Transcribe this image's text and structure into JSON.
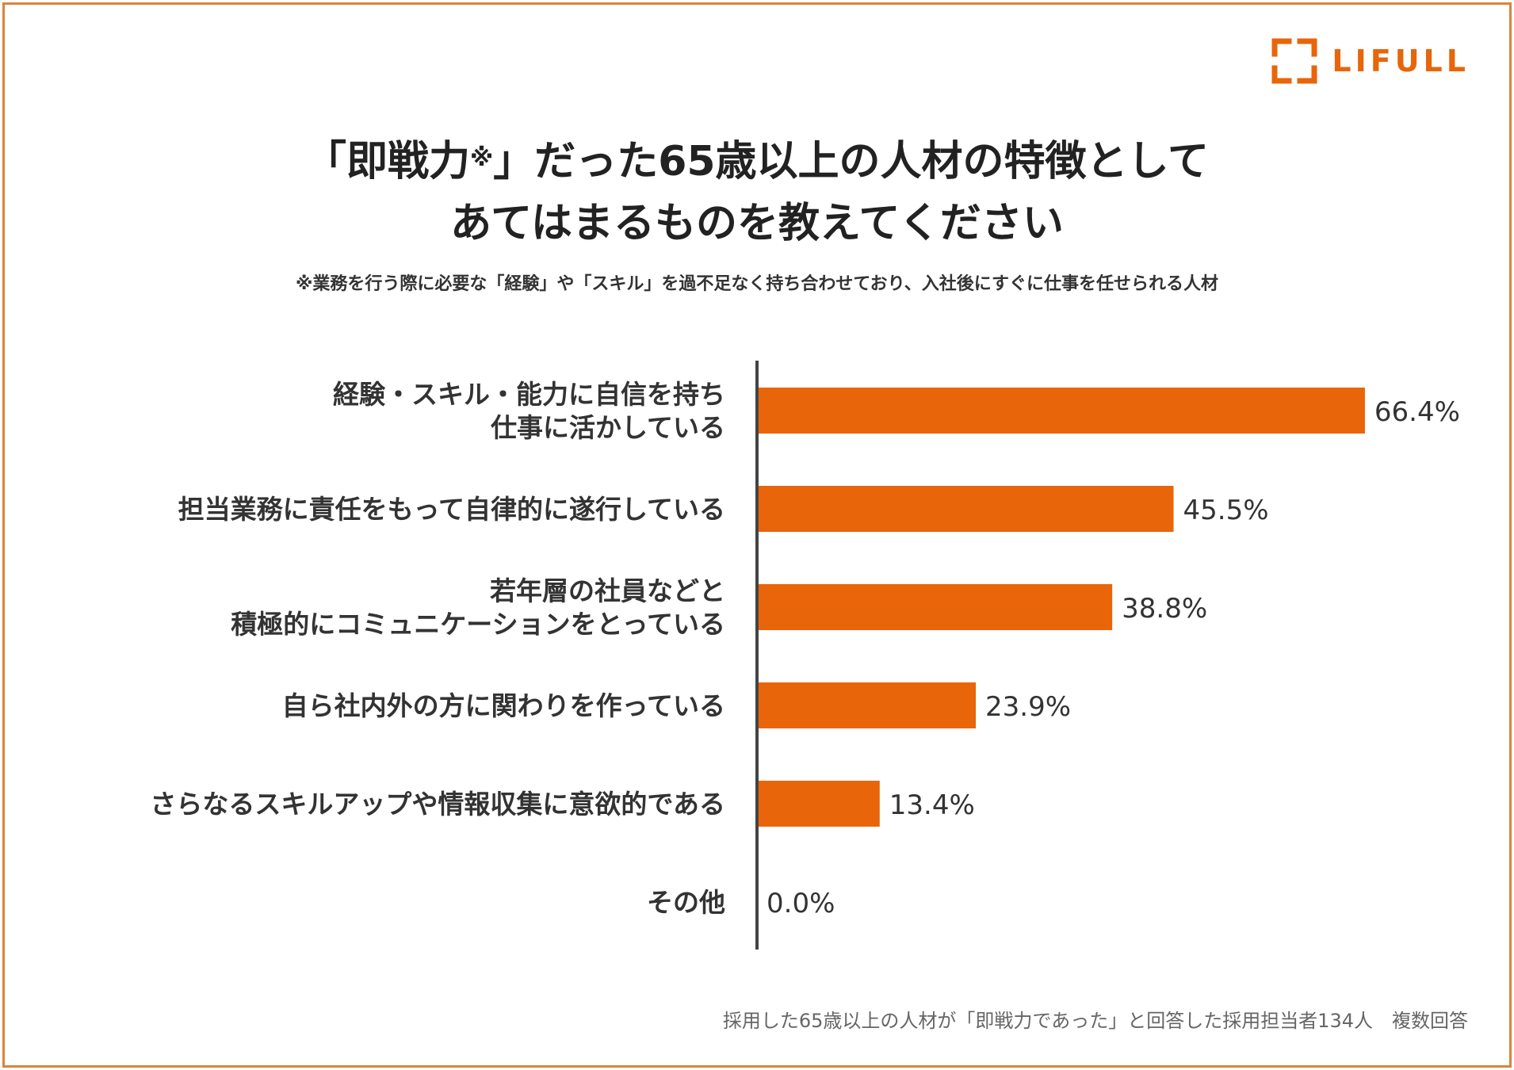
{
  "brand": {
    "logo_text": "LIFULL",
    "logo_icon": "bracket-frame-icon",
    "accent": "#e8650a"
  },
  "title": {
    "line1_main": "「即戦力",
    "line1_mark": "※",
    "line1_rest": "」だった65歳以上の人材の特徴として",
    "line2": "あてはまるものを教えてください"
  },
  "subtitle": "※業務を行う際に必要な「経験」や「スキル」を過不足なく持ち合わせており、入社後にすぐに仕事を任せられる人材",
  "footnote": "採用した65歳以上の人材が「即戦力であった」と回答した採用担当者134人　複数回答",
  "chart_data": {
    "type": "bar",
    "orientation": "horizontal",
    "categories": [
      [
        "経験・スキル・能力に自信を持ち",
        "仕事に活かしている"
      ],
      [
        "担当業務に責任をもって自律的に遂行している"
      ],
      [
        "若年層の社員などと",
        "積極的にコミュニケーションをとっている"
      ],
      [
        "自ら社内外の方に関わりを作っている"
      ],
      [
        "さらなるスキルアップや情報収集に意欲的である"
      ],
      [
        "その他"
      ]
    ],
    "values": [
      66.4,
      45.5,
      38.8,
      23.9,
      13.4,
      0.0
    ],
    "value_labels": [
      "66.4%",
      "45.5%",
      "38.8%",
      "23.9%",
      "13.4%",
      "0.0%"
    ],
    "unit": "%",
    "xlim": [
      0,
      100
    ],
    "grid": false,
    "bar_color": "#e8650a",
    "axis_color": "#444444"
  }
}
